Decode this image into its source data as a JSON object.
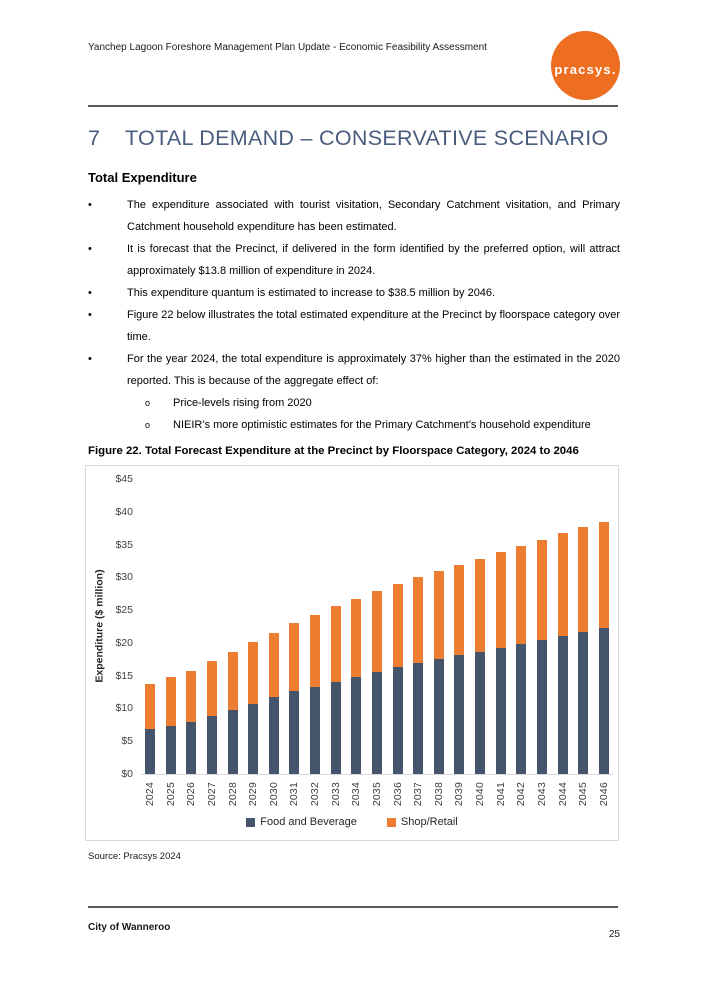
{
  "header": {
    "doc_title": "Yanchep Lagoon Foreshore Management Plan Update - Economic Feasibility Assessment",
    "logo_text": "pracsys."
  },
  "section": {
    "number": "7",
    "title": "TOTAL DEMAND – CONSERVATIVE SCENARIO",
    "subtitle": "Total Expenditure"
  },
  "bullets": [
    {
      "text": "The expenditure associated with tourist visitation, Secondary Catchment visitation, and Primary Catchment household expenditure has been estimated.",
      "subs": []
    },
    {
      "text": "It is forecast that the Precinct, if delivered in the form identified by the preferred option, will attract approximately $13.8 million of expenditure in 2024.",
      "subs": []
    },
    {
      "text": "This expenditure quantum is estimated to increase to $38.5 million by 2046.",
      "subs": []
    },
    {
      "text": "Figure 22 below illustrates the total estimated expenditure at the Precinct by floorspace category over time.",
      "subs": []
    },
    {
      "text": "For the year 2024, the total expenditure is approximately 37% higher than the estimated in the 2020 reported. This is because of the aggregate effect of:",
      "subs": [
        "Price-levels rising from 2020",
        "NIEIR’s more optimistic estimates for the Primary Catchment’s household expenditure"
      ]
    }
  ],
  "figure": {
    "caption": "Figure 22. Total Forecast Expenditure at the Precinct by Floorspace Category, 2024 to 2046",
    "source": "Source: Pracsys 2024"
  },
  "chart_data": {
    "type": "bar",
    "stacked": true,
    "categories": [
      "2024",
      "2025",
      "2026",
      "2027",
      "2028",
      "2029",
      "2030",
      "2031",
      "2032",
      "2033",
      "2034",
      "2035",
      "2036",
      "2037",
      "2038",
      "2039",
      "2040",
      "2041",
      "2042",
      "2043",
      "2044",
      "2045",
      "2046"
    ],
    "series": [
      {
        "name": "Food and Beverage",
        "color": "#44546A",
        "values": [
          6.9,
          7.4,
          7.9,
          8.8,
          9.8,
          10.7,
          11.7,
          12.7,
          13.3,
          14.1,
          14.8,
          15.6,
          16.3,
          16.9,
          17.5,
          18.1,
          18.6,
          19.2,
          19.8,
          20.4,
          21.1,
          21.6,
          22.2
        ]
      },
      {
        "name": "Shop/Retail",
        "color": "#ED7D31",
        "values": [
          6.9,
          7.4,
          7.8,
          8.4,
          8.8,
          9.4,
          9.8,
          10.3,
          11.0,
          11.5,
          11.9,
          12.3,
          12.7,
          13.1,
          13.5,
          13.8,
          14.2,
          14.7,
          15.0,
          15.3,
          15.7,
          16.1,
          16.3
        ]
      }
    ],
    "totals": [
      13.8,
      14.8,
      15.7,
      17.2,
      18.6,
      20.1,
      21.5,
      23.0,
      24.3,
      25.6,
      26.7,
      27.9,
      29.0,
      30.0,
      31.0,
      31.9,
      32.8,
      33.9,
      34.8,
      35.7,
      36.8,
      37.7,
      38.5
    ],
    "xlabel": "",
    "ylabel": "Expenditure ($ million)",
    "ylim": [
      0,
      45
    ],
    "yticks": [
      "$0",
      "$5",
      "$10",
      "$15",
      "$20",
      "$25",
      "$30",
      "$35",
      "$40",
      "$45"
    ],
    "legend_position": "bottom",
    "grid": false
  },
  "footer": {
    "left": "City of Wanneroo",
    "page": "25"
  }
}
